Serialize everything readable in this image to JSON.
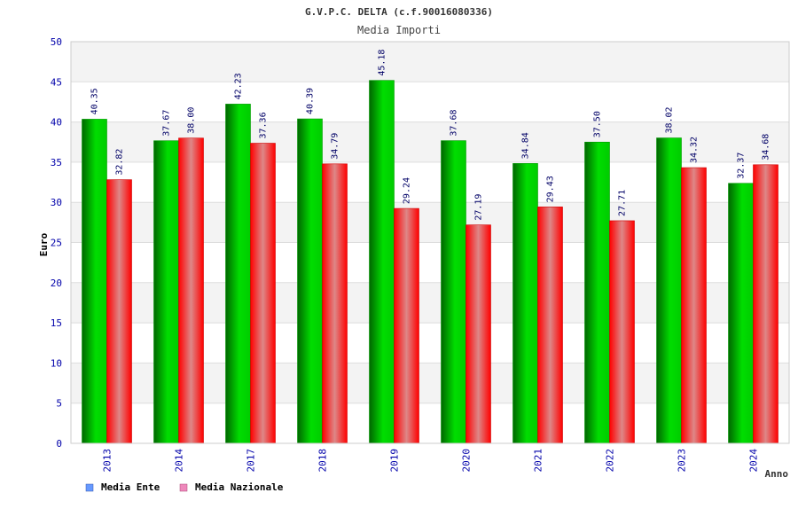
{
  "chart_data": {
    "type": "bar",
    "title": "G.V.P.C. DELTA (c.f.90016080336)",
    "subtitle": "Media Importi",
    "xlabel": "Anno",
    "ylabel": "Euro",
    "ylim": [
      0,
      50
    ],
    "yticks": [
      "0",
      "5",
      "10",
      "15",
      "20",
      "25",
      "30",
      "35",
      "40",
      "45",
      "50"
    ],
    "categories": [
      "2013",
      "2014",
      "2017",
      "2018",
      "2019",
      "2020",
      "2021",
      "2022",
      "2023",
      "2024"
    ],
    "series": [
      {
        "name": "Media Ente",
        "values": [
          40.35,
          37.67,
          42.23,
          40.39,
          45.18,
          37.68,
          34.84,
          37.5,
          38.02,
          32.37
        ],
        "labels": [
          "40.35",
          "37.67",
          "42.23",
          "40.39",
          "45.18",
          "37.68",
          "34.84",
          "37.50",
          "38.02",
          "32.37"
        ],
        "color": "#00cc00",
        "legend_color": "#6699ff"
      },
      {
        "name": "Media Nazionale",
        "values": [
          32.82,
          38.0,
          37.36,
          34.79,
          29.24,
          27.19,
          29.43,
          27.71,
          34.32,
          34.68
        ],
        "labels": [
          "32.82",
          "38.00",
          "37.36",
          "34.79",
          "29.24",
          "27.19",
          "29.43",
          "27.71",
          "34.32",
          "34.68"
        ],
        "color": "#ff0000",
        "legend_color": "#ee88bb"
      }
    ],
    "grid": true,
    "legend": "bottom-left"
  },
  "colors": {
    "tick_text": "#0000aa",
    "title_text": "#333333",
    "band_fill": "#f3f3f3",
    "grid_line": "#dddddd"
  }
}
